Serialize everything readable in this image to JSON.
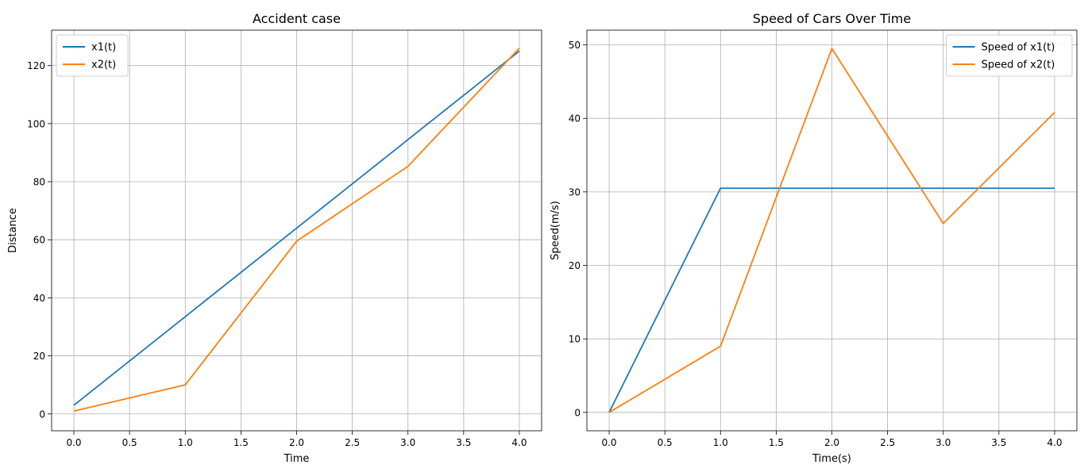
{
  "chart_data": [
    {
      "type": "line",
      "title": "Accident case",
      "xlabel": "Time",
      "ylabel": "Distance",
      "xlim": [
        -0.2,
        4.2
      ],
      "ylim": [
        -5.8,
        132.2
      ],
      "xticks": [
        0.0,
        0.5,
        1.0,
        1.5,
        2.0,
        2.5,
        3.0,
        3.5,
        4.0
      ],
      "xtick_labels": [
        "0.0",
        "0.5",
        "1.0",
        "1.5",
        "2.0",
        "2.5",
        "3.0",
        "3.5",
        "4.0"
      ],
      "yticks": [
        0,
        20,
        40,
        60,
        80,
        100,
        120
      ],
      "ytick_labels": [
        "0",
        "20",
        "40",
        "60",
        "80",
        "100",
        "120"
      ],
      "grid": true,
      "legend": "upper-left",
      "x": [
        0,
        1,
        2,
        3,
        4
      ],
      "series": [
        {
          "name": "x1(t)",
          "color": "#1f77b4",
          "values": [
            3,
            33.5,
            64,
            94.5,
            125
          ]
        },
        {
          "name": "x2(t)",
          "color": "#ff7f0e",
          "values": [
            1,
            10,
            59.5,
            85.3,
            126
          ]
        }
      ]
    },
    {
      "type": "line",
      "title": "Speed of Cars Over Time",
      "xlabel": "Time(s)",
      "ylabel": "Speed(m/s)",
      "xlim": [
        -0.2,
        4.2
      ],
      "ylim": [
        -2.5,
        52
      ],
      "xticks": [
        0.0,
        0.5,
        1.0,
        1.5,
        2.0,
        2.5,
        3.0,
        3.5,
        4.0
      ],
      "xtick_labels": [
        "0.0",
        "0.5",
        "1.0",
        "1.5",
        "2.0",
        "2.5",
        "3.0",
        "3.5",
        "4.0"
      ],
      "yticks": [
        0,
        10,
        20,
        30,
        40,
        50
      ],
      "ytick_labels": [
        "0",
        "10",
        "20",
        "30",
        "40",
        "50"
      ],
      "grid": true,
      "legend": "upper-right",
      "x": [
        0,
        1,
        2,
        3,
        4
      ],
      "series": [
        {
          "name": "Speed of x1(t)",
          "color": "#1f77b4",
          "values": [
            0,
            30.5,
            30.5,
            30.5,
            30.5
          ]
        },
        {
          "name": "Speed of x2(t)",
          "color": "#ff7f0e",
          "values": [
            0,
            9,
            49.5,
            25.7,
            40.8
          ]
        }
      ]
    }
  ]
}
